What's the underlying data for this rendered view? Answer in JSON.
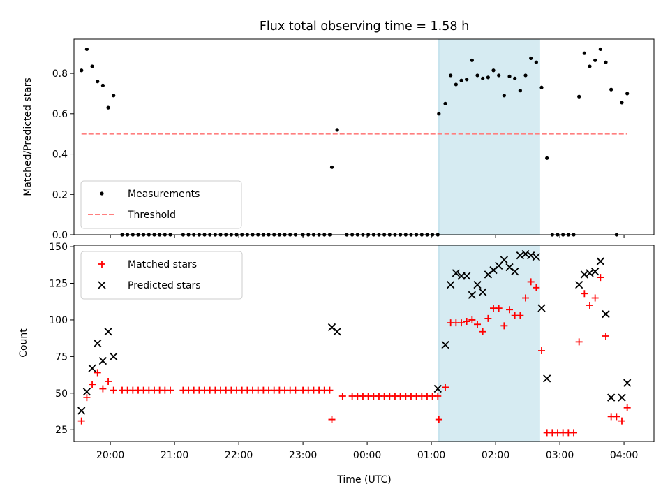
{
  "title": "Flux total observing time = 1.58 h",
  "xlabel": "Time (UTC)",
  "x_ticks": [
    "20:00",
    "21:00",
    "22:00",
    "23:00",
    "00:00",
    "01:00",
    "02:00",
    "03:00",
    "04:00"
  ],
  "shaded_interval": [
    "01:07",
    "02:41"
  ],
  "colors": {
    "measurements": "#000000",
    "threshold": "#ff7f7f",
    "matched": "#ff0000",
    "predicted": "#000000",
    "shade": "#add8e6"
  },
  "chart_data": [
    {
      "type": "scatter",
      "ylabel": "Matched/Predicted stars",
      "xlim": [
        "19:26",
        "04:28"
      ],
      "ylim": [
        0,
        0.97
      ],
      "y_ticks": [
        "0.0",
        "0.2",
        "0.4",
        "0.6",
        "0.8"
      ],
      "legend": "bottom-left",
      "series": [
        {
          "name": "Measurements",
          "marker": "dot",
          "points": [
            [
              "19:33",
              0.815
            ],
            [
              "19:38",
              0.92
            ],
            [
              "19:43",
              0.835
            ],
            [
              "19:48",
              0.76
            ],
            [
              "19:53",
              0.74
            ],
            [
              "19:58",
              0.63
            ],
            [
              "20:03",
              0.69
            ],
            [
              "20:11",
              0
            ],
            [
              "20:16",
              0
            ],
            [
              "20:21",
              0
            ],
            [
              "20:26",
              0
            ],
            [
              "20:31",
              0
            ],
            [
              "20:36",
              0
            ],
            [
              "20:41",
              0
            ],
            [
              "20:46",
              0
            ],
            [
              "20:51",
              0
            ],
            [
              "20:56",
              0
            ],
            [
              "21:08",
              0
            ],
            [
              "21:13",
              0
            ],
            [
              "21:18",
              0
            ],
            [
              "21:23",
              0
            ],
            [
              "21:28",
              0
            ],
            [
              "21:33",
              0
            ],
            [
              "21:38",
              0
            ],
            [
              "21:43",
              0
            ],
            [
              "21:48",
              0
            ],
            [
              "21:53",
              0
            ],
            [
              "21:58",
              0
            ],
            [
              "22:03",
              0
            ],
            [
              "22:08",
              0
            ],
            [
              "22:13",
              0
            ],
            [
              "22:18",
              0
            ],
            [
              "22:23",
              0
            ],
            [
              "22:28",
              0
            ],
            [
              "22:33",
              0
            ],
            [
              "22:38",
              0
            ],
            [
              "22:43",
              0
            ],
            [
              "22:48",
              0
            ],
            [
              "22:53",
              0
            ],
            [
              "23:00",
              0
            ],
            [
              "23:05",
              0
            ],
            [
              "23:10",
              0
            ],
            [
              "23:15",
              0
            ],
            [
              "23:20",
              0
            ],
            [
              "23:25",
              0
            ],
            [
              "23:27",
              0.335
            ],
            [
              "23:32",
              0.52
            ],
            [
              "23:41",
              0
            ],
            [
              "23:46",
              0
            ],
            [
              "23:51",
              0
            ],
            [
              "23:56",
              0
            ],
            [
              "00:01",
              0
            ],
            [
              "00:06",
              0
            ],
            [
              "00:11",
              0
            ],
            [
              "00:16",
              0
            ],
            [
              "00:21",
              0
            ],
            [
              "00:26",
              0
            ],
            [
              "00:31",
              0
            ],
            [
              "00:36",
              0
            ],
            [
              "00:41",
              0
            ],
            [
              "00:46",
              0
            ],
            [
              "00:51",
              0
            ],
            [
              "00:56",
              0
            ],
            [
              "01:01",
              0
            ],
            [
              "01:06",
              0
            ],
            [
              "01:07",
              0.6
            ],
            [
              "01:13",
              0.65
            ],
            [
              "01:18",
              0.79
            ],
            [
              "01:23",
              0.745
            ],
            [
              "01:28",
              0.765
            ],
            [
              "01:33",
              0.77
            ],
            [
              "01:38",
              0.865
            ],
            [
              "01:43",
              0.79
            ],
            [
              "01:48",
              0.775
            ],
            [
              "01:53",
              0.78
            ],
            [
              "01:58",
              0.815
            ],
            [
              "02:03",
              0.79
            ],
            [
              "02:08",
              0.69
            ],
            [
              "02:13",
              0.785
            ],
            [
              "02:18",
              0.775
            ],
            [
              "02:23",
              0.715
            ],
            [
              "02:28",
              0.79
            ],
            [
              "02:33",
              0.875
            ],
            [
              "02:38",
              0.855
            ],
            [
              "02:43",
              0.73
            ],
            [
              "02:48",
              0.38
            ],
            [
              "02:53",
              0
            ],
            [
              "02:58",
              0
            ],
            [
              "03:03",
              0
            ],
            [
              "03:08",
              0
            ],
            [
              "03:13",
              0
            ],
            [
              "03:18",
              0.685
            ],
            [
              "03:23",
              0.9
            ],
            [
              "03:28",
              0.835
            ],
            [
              "03:33",
              0.865
            ],
            [
              "03:38",
              0.92
            ],
            [
              "03:43",
              0.855
            ],
            [
              "03:48",
              0.72
            ],
            [
              "03:53",
              0
            ],
            [
              "03:58",
              0.655
            ],
            [
              "04:03",
              0.7
            ]
          ]
        },
        {
          "name": "Threshold",
          "style": "dashed",
          "points": [
            [
              "19:33",
              0.5
            ],
            [
              "04:03",
              0.5
            ]
          ]
        }
      ]
    },
    {
      "type": "scatter",
      "ylabel": "Count",
      "xlim": [
        "19:26",
        "04:28"
      ],
      "ylim": [
        17,
        151
      ],
      "y_ticks": [
        "25",
        "50",
        "75",
        "100",
        "125",
        "150"
      ],
      "legend": "top-left",
      "series": [
        {
          "name": "Matched stars",
          "marker": "plus",
          "points": [
            [
              "19:33",
              31
            ],
            [
              "19:38",
              47
            ],
            [
              "19:43",
              56
            ],
            [
              "19:48",
              64
            ],
            [
              "19:53",
              53
            ],
            [
              "19:58",
              58
            ],
            [
              "20:03",
              52
            ],
            [
              "20:11",
              52
            ],
            [
              "20:16",
              52
            ],
            [
              "20:21",
              52
            ],
            [
              "20:26",
              52
            ],
            [
              "20:31",
              52
            ],
            [
              "20:36",
              52
            ],
            [
              "20:41",
              52
            ],
            [
              "20:46",
              52
            ],
            [
              "20:51",
              52
            ],
            [
              "20:56",
              52
            ],
            [
              "21:08",
              52
            ],
            [
              "21:13",
              52
            ],
            [
              "21:18",
              52
            ],
            [
              "21:23",
              52
            ],
            [
              "21:28",
              52
            ],
            [
              "21:33",
              52
            ],
            [
              "21:38",
              52
            ],
            [
              "21:43",
              52
            ],
            [
              "21:48",
              52
            ],
            [
              "21:53",
              52
            ],
            [
              "21:58",
              52
            ],
            [
              "22:03",
              52
            ],
            [
              "22:08",
              52
            ],
            [
              "22:13",
              52
            ],
            [
              "22:18",
              52
            ],
            [
              "22:23",
              52
            ],
            [
              "22:28",
              52
            ],
            [
              "22:33",
              52
            ],
            [
              "22:38",
              52
            ],
            [
              "22:43",
              52
            ],
            [
              "22:48",
              52
            ],
            [
              "22:53",
              52
            ],
            [
              "23:00",
              52
            ],
            [
              "23:05",
              52
            ],
            [
              "23:10",
              52
            ],
            [
              "23:15",
              52
            ],
            [
              "23:20",
              52
            ],
            [
              "23:25",
              52
            ],
            [
              "23:27",
              32
            ],
            [
              "23:37",
              48
            ],
            [
              "23:46",
              48
            ],
            [
              "23:51",
              48
            ],
            [
              "23:56",
              48
            ],
            [
              "00:01",
              48
            ],
            [
              "00:06",
              48
            ],
            [
              "00:11",
              48
            ],
            [
              "00:16",
              48
            ],
            [
              "00:21",
              48
            ],
            [
              "00:26",
              48
            ],
            [
              "00:31",
              48
            ],
            [
              "00:36",
              48
            ],
            [
              "00:41",
              48
            ],
            [
              "00:46",
              48
            ],
            [
              "00:51",
              48
            ],
            [
              "00:56",
              48
            ],
            [
              "01:01",
              48
            ],
            [
              "01:06",
              48
            ],
            [
              "01:07",
              32
            ],
            [
              "01:13",
              54
            ],
            [
              "01:18",
              98
            ],
            [
              "01:23",
              98
            ],
            [
              "01:28",
              98
            ],
            [
              "01:33",
              99
            ],
            [
              "01:38",
              100
            ],
            [
              "01:43",
              97
            ],
            [
              "01:48",
              92
            ],
            [
              "01:53",
              101
            ],
            [
              "01:58",
              108
            ],
            [
              "02:03",
              108
            ],
            [
              "02:08",
              96
            ],
            [
              "02:13",
              107
            ],
            [
              "02:18",
              103
            ],
            [
              "02:23",
              103
            ],
            [
              "02:28",
              115
            ],
            [
              "02:33",
              126
            ],
            [
              "02:38",
              122
            ],
            [
              "02:43",
              79
            ],
            [
              "02:48",
              23
            ],
            [
              "02:53",
              23
            ],
            [
              "02:58",
              23
            ],
            [
              "03:03",
              23
            ],
            [
              "03:08",
              23
            ],
            [
              "03:13",
              23
            ],
            [
              "03:18",
              85
            ],
            [
              "03:23",
              118
            ],
            [
              "03:28",
              110
            ],
            [
              "03:33",
              115
            ],
            [
              "03:38",
              129
            ],
            [
              "03:43",
              89
            ],
            [
              "03:48",
              34
            ],
            [
              "03:53",
              34
            ],
            [
              "03:58",
              31
            ],
            [
              "04:03",
              40
            ]
          ]
        },
        {
          "name": "Predicted stars",
          "marker": "x",
          "points": [
            [
              "19:33",
              38
            ],
            [
              "19:38",
              51
            ],
            [
              "19:43",
              67
            ],
            [
              "19:48",
              84
            ],
            [
              "19:53",
              72
            ],
            [
              "19:58",
              92
            ],
            [
              "20:03",
              75
            ],
            [
              "23:27",
              95
            ],
            [
              "23:32",
              92
            ],
            [
              "01:06",
              53
            ],
            [
              "01:13",
              83
            ],
            [
              "01:18",
              124
            ],
            [
              "01:23",
              132
            ],
            [
              "01:28",
              130
            ],
            [
              "01:33",
              130
            ],
            [
              "01:38",
              117
            ],
            [
              "01:43",
              124
            ],
            [
              "01:48",
              119
            ],
            [
              "01:53",
              131
            ],
            [
              "01:58",
              134
            ],
            [
              "02:03",
              137
            ],
            [
              "02:08",
              141
            ],
            [
              "02:13",
              136
            ],
            [
              "02:18",
              133
            ],
            [
              "02:23",
              144
            ],
            [
              "02:28",
              145
            ],
            [
              "02:33",
              144
            ],
            [
              "02:38",
              143
            ],
            [
              "02:43",
              108
            ],
            [
              "02:48",
              60
            ],
            [
              "03:18",
              124
            ],
            [
              "03:23",
              131
            ],
            [
              "03:28",
              132
            ],
            [
              "03:33",
              133
            ],
            [
              "03:38",
              140
            ],
            [
              "03:43",
              104
            ],
            [
              "03:48",
              47
            ],
            [
              "03:58",
              47
            ],
            [
              "04:03",
              57
            ]
          ]
        }
      ]
    }
  ]
}
